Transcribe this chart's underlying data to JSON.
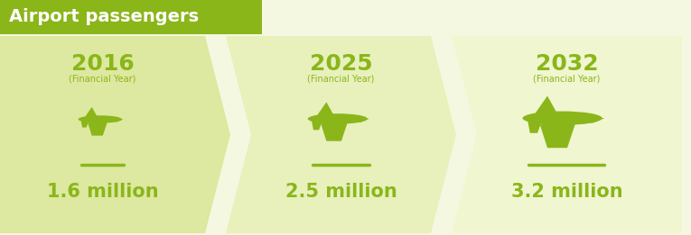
{
  "title": "Airport passengers",
  "title_bg_color": "#8ab61a",
  "title_text_color": "#ffffff",
  "bg_color": "#f5f8e0",
  "plane_color": "#8ab61a",
  "line_color": "#8ab61a",
  "year_color": "#8ab61a",
  "value_color": "#8ab61a",
  "chevron_colors": [
    "#dde8a0",
    "#e8f0bc",
    "#f0f6d0"
  ],
  "items": [
    {
      "year": "2016",
      "subtitle": "(Financial Year)",
      "value": "1.6 million",
      "plane_scale": 0.55
    },
    {
      "year": "2025",
      "subtitle": "(Financial Year)",
      "value": "2.5 million",
      "plane_scale": 0.75
    },
    {
      "year": "2032",
      "subtitle": "(Financial Year)",
      "value": "3.2 million",
      "plane_scale": 1.0
    }
  ],
  "fig_width": 7.65,
  "fig_height": 2.61,
  "dpi": 100
}
